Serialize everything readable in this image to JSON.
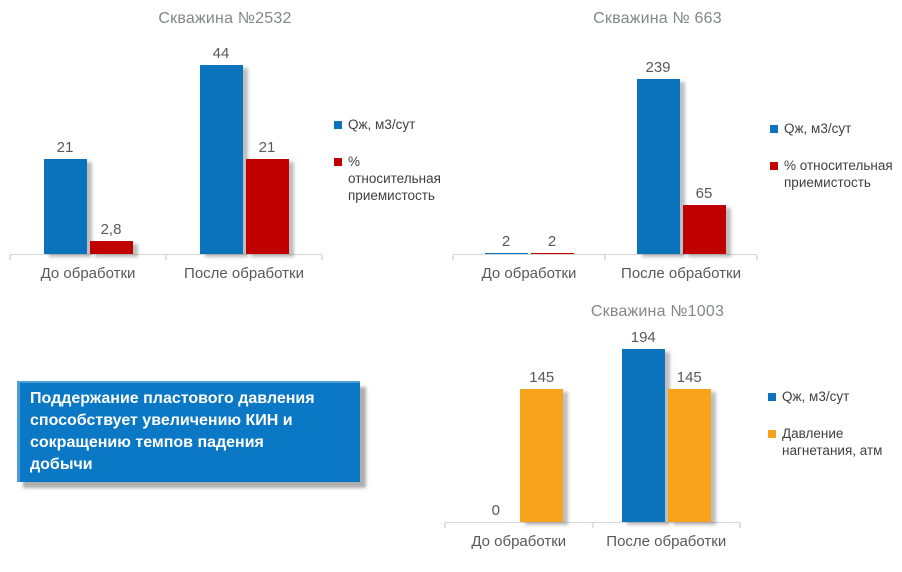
{
  "page": {
    "background_color": "#FFFFFF"
  },
  "info_box": {
    "text": "Поддержание пластового давления\nспособствует увеличению КИН и\nсокращению темпов падения\nдобычи",
    "bg_color": "#0A78C4",
    "text_color": "#FFFFFF"
  },
  "colors": {
    "series_blue": "#0B72BC",
    "series_red": "#C00000",
    "series_orange": "#F8A31C",
    "text_gray": "#595959",
    "title_gray": "#848689",
    "legend_text": "#404040",
    "axis_line": "#D6D6D6"
  },
  "chart_data": [
    {
      "type": "bar",
      "title": "Скважина №2532",
      "categories": [
        "До обработки",
        "После обработки"
      ],
      "series": [
        {
          "name": "Qж, м3/сут",
          "color": "#0B72BC",
          "values": [
            21,
            44
          ],
          "labels": [
            "21",
            "44"
          ]
        },
        {
          "name": "% относительная\nприемистость",
          "color": "#C00000",
          "values": [
            2.8,
            21
          ],
          "labels": [
            "2,8",
            "21"
          ]
        }
      ],
      "xlabel": "",
      "ylabel": "",
      "ylim": [
        0,
        46
      ],
      "grid": false,
      "legend_position": "right"
    },
    {
      "type": "bar",
      "title": "Скважина № 663",
      "categories": [
        "До обработки",
        "После обработки"
      ],
      "series": [
        {
          "name": "Qж, м3/сут",
          "color": "#0B72BC",
          "values": [
            2,
            239
          ],
          "labels": [
            "2",
            "239"
          ]
        },
        {
          "name": "% относительная\nприемистость",
          "color": "#C00000",
          "values": [
            2,
            65
          ],
          "labels": [
            "2",
            "65"
          ]
        }
      ],
      "xlabel": "",
      "ylabel": "",
      "ylim": [
        0,
        260
      ],
      "grid": false,
      "legend_position": "right"
    },
    {
      "type": "bar",
      "title": "Скважина №1003",
      "categories": [
        "До обработки",
        "После обработки"
      ],
      "series": [
        {
          "name": "Qж, м3/сут",
          "color": "#0B72BC",
          "values": [
            0,
            194
          ],
          "labels": [
            "0",
            "194"
          ]
        },
        {
          "name": "Давление\nнагнетания, атм",
          "color": "#F8A31C",
          "values": [
            145,
            145
          ],
          "labels": [
            "145",
            "145"
          ]
        }
      ],
      "xlabel": "",
      "ylabel": "",
      "ylim": [
        0,
        210
      ],
      "grid": false,
      "legend_position": "right"
    }
  ]
}
